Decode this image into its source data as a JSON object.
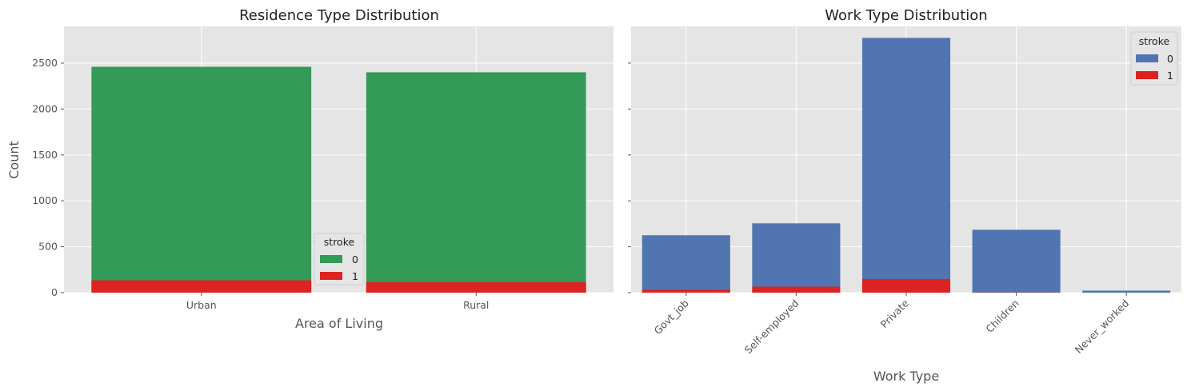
{
  "chart_data": [
    {
      "type": "bar",
      "title": "Residence Type Distribution",
      "xlabel": "Area of Living",
      "ylabel": "Count",
      "categories": [
        "Urban",
        "Rural"
      ],
      "series": [
        {
          "name": "0",
          "color": "#339a57",
          "values": [
            2460,
            2400
          ]
        },
        {
          "name": "1",
          "color": "#dd2222",
          "values": [
            135,
            114
          ]
        }
      ],
      "ylim": [
        0,
        2900
      ],
      "yticks": [
        0,
        500,
        1000,
        1500,
        2000,
        2500
      ],
      "grid": true,
      "legend_title": "stroke",
      "legend_position": "lower-right"
    },
    {
      "type": "bar",
      "title": "Work Type Distribution",
      "xlabel": "Work Type",
      "ylabel": "",
      "categories": [
        "Govt_job",
        "Self-employed",
        "Private",
        "Children",
        "Never_worked"
      ],
      "series": [
        {
          "name": "0",
          "color": "#5175b1",
          "values": [
            625,
            755,
            2775,
            685,
            22
          ]
        },
        {
          "name": "1",
          "color": "#dd2222",
          "values": [
            33,
            65,
            149,
            2,
            0
          ]
        }
      ],
      "ylim": [
        0,
        2900
      ],
      "yticks": [
        0,
        500,
        1000,
        1500,
        2000,
        2500
      ],
      "grid": true,
      "legend_title": "stroke",
      "legend_position": "upper-right"
    }
  ]
}
